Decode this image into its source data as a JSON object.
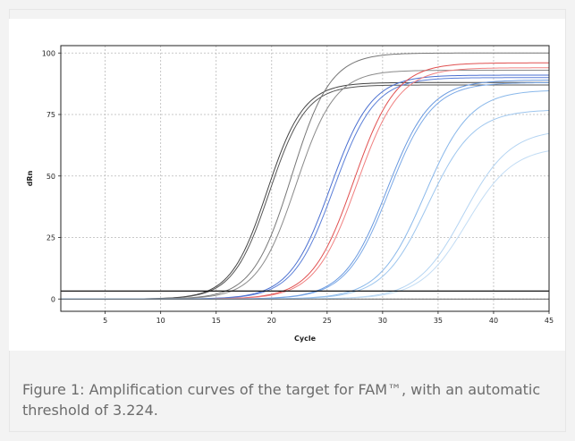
{
  "caption": "Figure 1: Amplification curves of the target for FAM™, with an automatic threshold of 3.224.",
  "chart_data": {
    "type": "line",
    "xlabel": "Cycle",
    "ylabel": "dRn",
    "xlim": [
      1,
      45
    ],
    "ylim": [
      -5,
      103
    ],
    "xticks": [
      5,
      10,
      15,
      20,
      25,
      30,
      35,
      40,
      45
    ],
    "yticks": [
      0,
      25,
      50,
      75,
      100
    ],
    "grid": true,
    "threshold": 3.224,
    "series": [
      {
        "color": "#444444",
        "midpoint": 19.6,
        "slope": 1.65,
        "plateau": 88
      },
      {
        "color": "#555555",
        "midpoint": 19.8,
        "slope": 1.65,
        "plateau": 87
      },
      {
        "color": "#777777",
        "midpoint": 21.8,
        "slope": 1.75,
        "plateau": 100
      },
      {
        "color": "#8a8a8a",
        "midpoint": 22.2,
        "slope": 1.75,
        "plateau": 93
      },
      {
        "color": "#4a6fd0",
        "midpoint": 25.3,
        "slope": 1.85,
        "plateau": 91
      },
      {
        "color": "#5b7fd8",
        "midpoint": 25.6,
        "slope": 1.85,
        "plateau": 90
      },
      {
        "color": "#e05050",
        "midpoint": 27.4,
        "slope": 1.9,
        "plateau": 96
      },
      {
        "color": "#f08080",
        "midpoint": 27.7,
        "slope": 1.9,
        "plateau": 94
      },
      {
        "color": "#6a9ae0",
        "midpoint": 30.4,
        "slope": 1.95,
        "plateau": 89
      },
      {
        "color": "#7aa8e6",
        "midpoint": 30.6,
        "slope": 1.95,
        "plateau": 88
      },
      {
        "color": "#8ab8ea",
        "midpoint": 33.8,
        "slope": 2.05,
        "plateau": 85
      },
      {
        "color": "#9ec6ee",
        "midpoint": 34.1,
        "slope": 2.05,
        "plateau": 77
      },
      {
        "color": "#b4d4f2",
        "midpoint": 37.3,
        "slope": 2.1,
        "plateau": 69
      },
      {
        "color": "#c2dcf4",
        "midpoint": 37.6,
        "slope": 2.1,
        "plateau": 62
      }
    ]
  }
}
